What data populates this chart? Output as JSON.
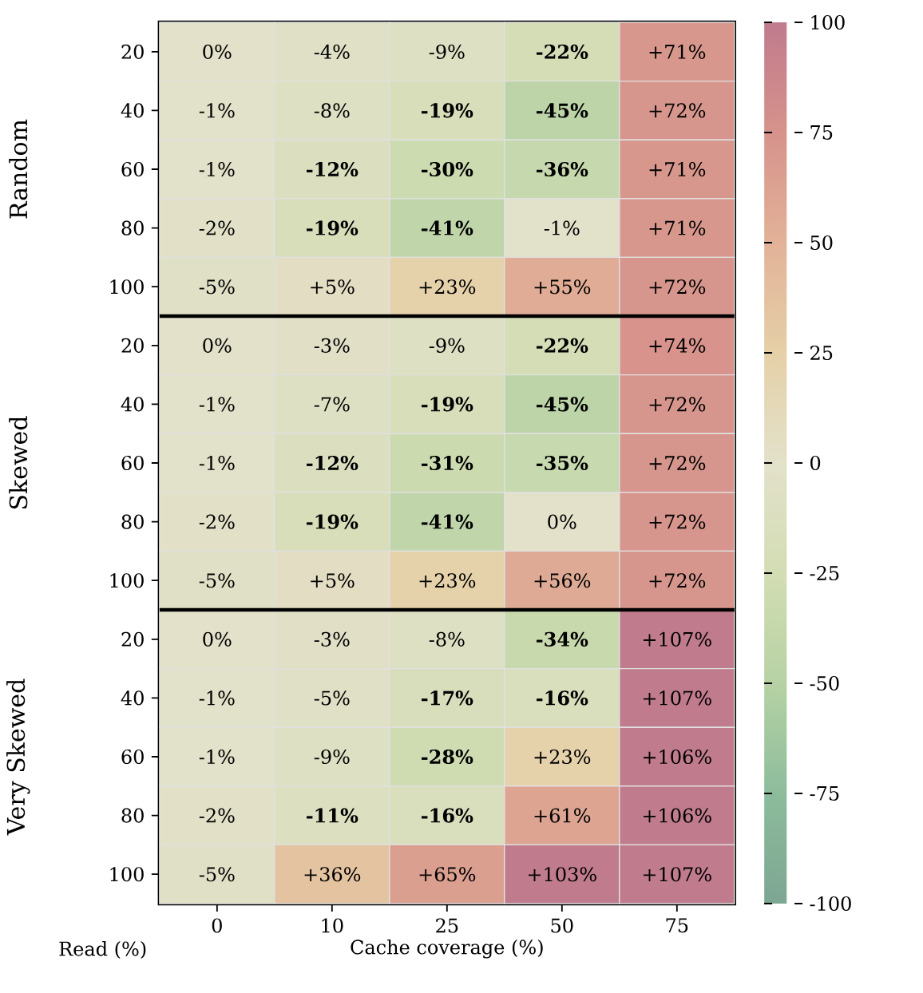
{
  "chart_data": {
    "type": "heatmap",
    "xlabel": "Cache coverage (%)",
    "ylabel": "Read (%)",
    "categories": [
      "0",
      "10",
      "25",
      "50",
      "75"
    ],
    "y_categories": [
      "20",
      "40",
      "60",
      "80",
      "100",
      "20",
      "40",
      "60",
      "80",
      "100",
      "20",
      "40",
      "60",
      "80",
      "100"
    ],
    "annotations": [
      "Random",
      "Skewed",
      "Very Skewed"
    ],
    "cells": [
      [
        0,
        -4,
        -9,
        -22,
        71
      ],
      [
        -1,
        -8,
        -19,
        -45,
        72
      ],
      [
        -1,
        -12,
        -30,
        -36,
        71
      ],
      [
        -2,
        -19,
        -41,
        -1,
        71
      ],
      [
        -5,
        5,
        23,
        55,
        72
      ],
      [
        0,
        -3,
        -9,
        -22,
        74
      ],
      [
        -1,
        -7,
        -19,
        -45,
        72
      ],
      [
        -1,
        -12,
        -31,
        -35,
        72
      ],
      [
        -2,
        -19,
        -41,
        0,
        72
      ],
      [
        -5,
        5,
        23,
        56,
        72
      ],
      [
        0,
        -3,
        -8,
        -34,
        107
      ],
      [
        -1,
        -5,
        -17,
        -16,
        107
      ],
      [
        -1,
        -9,
        -28,
        23,
        106
      ],
      [
        -2,
        -11,
        -16,
        61,
        106
      ],
      [
        -5,
        36,
        65,
        103,
        107
      ]
    ],
    "cell_labels": [
      [
        "0%",
        "-4%",
        "-9%",
        "**-22%**",
        "+71%"
      ],
      [
        "-1%",
        "-8%",
        "**-19%**",
        "**-45%**",
        "+72%"
      ],
      [
        "-1%",
        "**-12%**",
        "**-30%**",
        "**-36%**",
        "+71%"
      ],
      [
        "-2%",
        "**-19%**",
        "**-41%**",
        "-1%",
        "+71%"
      ],
      [
        "-5%",
        "+5%",
        "+23%",
        "+55%",
        "+72%"
      ],
      [
        "0%",
        "-3%",
        "-9%",
        "**-22%**",
        "+74%"
      ],
      [
        "-1%",
        "-7%",
        "**-19%**",
        "**-45%**",
        "+72%"
      ],
      [
        "-1%",
        "**-12%**",
        "**-31%**",
        "**-35%**",
        "+72%"
      ],
      [
        "-2%",
        "**-19%**",
        "**-41%**",
        "0%",
        "+72%"
      ],
      [
        "-5%",
        "+5%",
        "+23%",
        "+56%",
        "+72%"
      ],
      [
        "0%",
        "-3%",
        "-8%",
        "**-34%**",
        "+107%"
      ],
      [
        "-1%",
        "-5%",
        "**-17%**",
        "**-16%**",
        "+107%"
      ],
      [
        "-1%",
        "-9%",
        "**-28%**",
        "+23%",
        "+106%"
      ],
      [
        "-2%",
        "**-11%**",
        "**-16%**",
        "+61%",
        "+106%"
      ],
      [
        "-5%",
        "+36%",
        "+65%",
        "+103%",
        "+107%"
      ]
    ],
    "clim": [
      -100,
      100
    ],
    "cticks": [
      -100,
      -75,
      -50,
      -25,
      0,
      25,
      50,
      75,
      100
    ]
  }
}
